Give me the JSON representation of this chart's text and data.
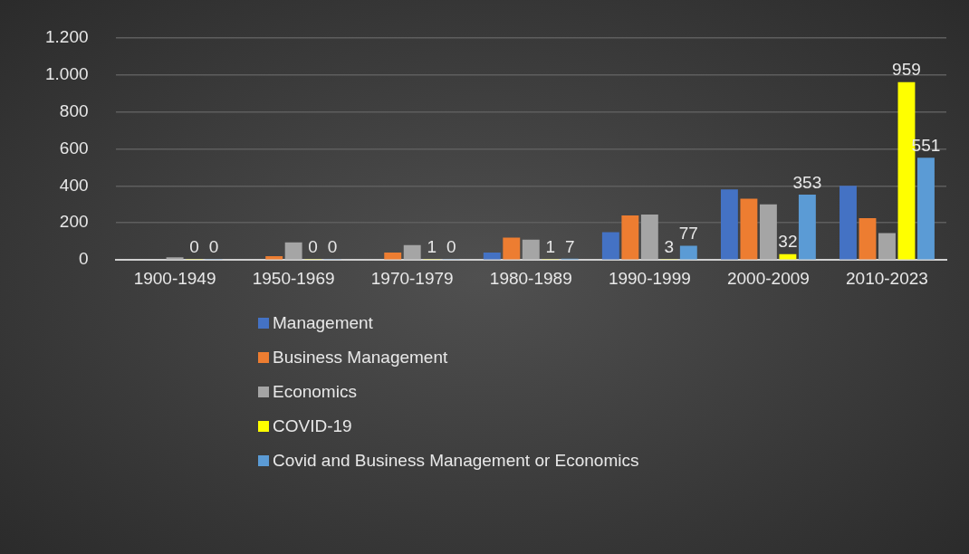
{
  "chart_data": {
    "type": "bar",
    "categories": [
      "1900-1949",
      "1950-1969",
      "1970-1979",
      "1980-1989",
      "1990-1999",
      "2000-2009",
      "2010-2023"
    ],
    "series": [
      {
        "name": "Management",
        "color": "#4472c4",
        "values": [
          null,
          null,
          null,
          40,
          150,
          380,
          400
        ]
      },
      {
        "name": "Business Management",
        "color": "#ed7d31",
        "values": [
          null,
          20,
          40,
          120,
          240,
          330,
          225
        ]
      },
      {
        "name": "Economics",
        "color": "#a5a5a5",
        "values": [
          15,
          95,
          80,
          110,
          245,
          300,
          145
        ]
      },
      {
        "name": "COVID-19",
        "color": "#ffff00",
        "values": [
          0,
          0,
          1,
          1,
          3,
          32,
          959
        ],
        "value_labels": [
          "0",
          "0",
          "1",
          "1",
          "3",
          "32",
          "959"
        ]
      },
      {
        "name": "Covid and Business Management or Economics",
        "color": "#5b9bd5",
        "values": [
          0,
          0,
          0,
          7,
          77,
          353,
          551
        ],
        "value_labels": [
          "0",
          "0",
          "0",
          "7",
          "77",
          "353",
          "551"
        ]
      }
    ],
    "ylim": [
      0,
      1200
    ],
    "yticks": [
      0,
      200,
      400,
      600,
      800,
      {
        "value": 1000,
        "label": "1.000"
      },
      {
        "value": 1200,
        "label": "1.200"
      }
    ],
    "grid": "y",
    "legend": "bottom"
  }
}
